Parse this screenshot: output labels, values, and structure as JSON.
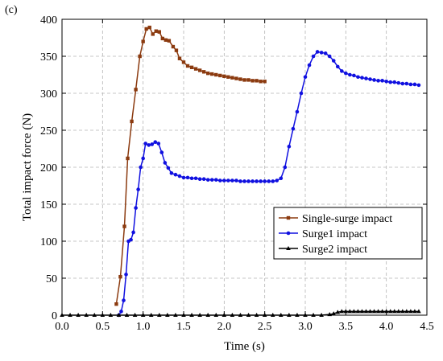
{
  "panel_label": "(c)",
  "chart_data": {
    "type": "line",
    "title": "",
    "xlabel": "Time (s)",
    "ylabel": "Total impact force (N)",
    "xlim": [
      0,
      4.5
    ],
    "ylim": [
      0,
      400
    ],
    "xticks": [
      "0.0",
      "0.5",
      "1.0",
      "1.5",
      "2.0",
      "2.5",
      "3.0",
      "3.5",
      "4.0",
      "4.5"
    ],
    "yticks": [
      "0",
      "50",
      "100",
      "150",
      "200",
      "250",
      "300",
      "350",
      "400"
    ],
    "grid": true,
    "legend_position": "right",
    "series": [
      {
        "name": "Single-surge impact",
        "color": "#8B3A0F",
        "marker": "square",
        "x": [
          0.67,
          0.72,
          0.77,
          0.81,
          0.86,
          0.91,
          0.96,
          1.0,
          1.04,
          1.08,
          1.12,
          1.16,
          1.2,
          1.24,
          1.28,
          1.32,
          1.37,
          1.41,
          1.45,
          1.5,
          1.55,
          1.6,
          1.65,
          1.7,
          1.75,
          1.8,
          1.85,
          1.9,
          1.95,
          2.0,
          2.05,
          2.1,
          2.15,
          2.2,
          2.25,
          2.3,
          2.35,
          2.4,
          2.45,
          2.5
        ],
        "y": [
          15,
          52,
          120,
          212,
          262,
          305,
          350,
          370,
          387,
          389,
          380,
          384,
          383,
          374,
          372,
          371,
          363,
          358,
          347,
          342,
          337,
          335,
          333,
          331,
          329,
          327,
          326,
          325,
          324,
          323,
          322,
          321,
          320,
          319,
          318,
          318,
          317,
          317,
          316,
          316
        ]
      },
      {
        "name": "Surge1 impact",
        "color": "#1010E0",
        "marker": "circle",
        "x": [
          0.7,
          0.73,
          0.76,
          0.79,
          0.82,
          0.85,
          0.88,
          0.91,
          0.94,
          0.97,
          1.0,
          1.03,
          1.07,
          1.11,
          1.15,
          1.19,
          1.23,
          1.27,
          1.31,
          1.35,
          1.4,
          1.45,
          1.5,
          1.55,
          1.6,
          1.65,
          1.7,
          1.75,
          1.8,
          1.85,
          1.9,
          1.95,
          2.0,
          2.05,
          2.1,
          2.15,
          2.2,
          2.25,
          2.3,
          2.35,
          2.4,
          2.45,
          2.5,
          2.55,
          2.6,
          2.65,
          2.7,
          2.75,
          2.8,
          2.85,
          2.9,
          2.95,
          3.0,
          3.05,
          3.1,
          3.15,
          3.2,
          3.25,
          3.3,
          3.35,
          3.4,
          3.45,
          3.5,
          3.55,
          3.6,
          3.65,
          3.7,
          3.75,
          3.8,
          3.85,
          3.9,
          3.95,
          4.0,
          4.05,
          4.1,
          4.15,
          4.2,
          4.25,
          4.3,
          4.35,
          4.4
        ],
        "y": [
          0,
          5,
          20,
          55,
          100,
          102,
          112,
          145,
          170,
          200,
          212,
          232,
          230,
          231,
          234,
          232,
          220,
          206,
          199,
          192,
          190,
          188,
          186,
          186,
          185,
          185,
          184,
          184,
          183,
          183,
          183,
          182,
          182,
          182,
          182,
          182,
          181,
          181,
          181,
          181,
          181,
          181,
          181,
          181,
          181,
          182,
          185,
          200,
          228,
          252,
          275,
          300,
          322,
          338,
          350,
          356,
          355,
          354,
          350,
          344,
          336,
          330,
          327,
          325,
          324,
          322,
          321,
          320,
          319,
          318,
          317,
          317,
          316,
          315,
          315,
          314,
          313,
          313,
          312,
          312,
          311
        ],
        "marker_note": ""
      },
      {
        "name": "Surge2 impact",
        "color": "#000000",
        "marker": "triangle",
        "x": [
          0.0,
          0.1,
          0.2,
          0.3,
          0.4,
          0.5,
          0.6,
          0.7,
          0.8,
          0.9,
          1.0,
          1.1,
          1.2,
          1.3,
          1.4,
          1.5,
          1.6,
          1.7,
          1.8,
          1.9,
          2.0,
          2.1,
          2.2,
          2.3,
          2.4,
          2.5,
          2.6,
          2.7,
          2.8,
          2.9,
          3.0,
          3.1,
          3.2,
          3.3,
          3.35,
          3.4,
          3.45,
          3.5,
          3.55,
          3.6,
          3.65,
          3.7,
          3.75,
          3.8,
          3.85,
          3.9,
          3.95,
          4.0,
          4.05,
          4.1,
          4.15,
          4.2,
          4.25,
          4.3,
          4.35,
          4.4
        ],
        "y": [
          0,
          0,
          0,
          0,
          0,
          0,
          0,
          0,
          0,
          0,
          0,
          0,
          0,
          0,
          0,
          0,
          0,
          0,
          0,
          0,
          0,
          0,
          0,
          0,
          0,
          0,
          0,
          0,
          0,
          0,
          0,
          0,
          0,
          1,
          2,
          4,
          5,
          5,
          5,
          5,
          5,
          5,
          5,
          5,
          5,
          5,
          5,
          5,
          5,
          5,
          5,
          5,
          5,
          5,
          5,
          5
        ]
      }
    ]
  }
}
